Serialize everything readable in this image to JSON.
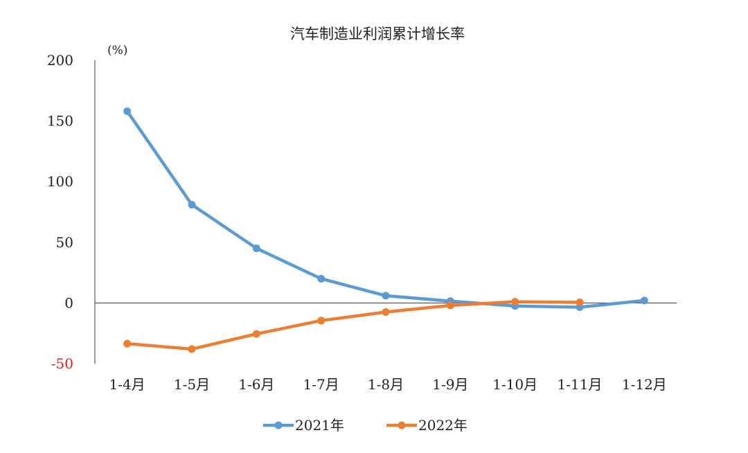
{
  "chart_data": {
    "type": "line",
    "title": "汽车制造业利润累计增长率",
    "unit_label": "(%)",
    "categories": [
      "1-4月",
      "1-5月",
      "1-6月",
      "1-7月",
      "1-8月",
      "1-9月",
      "1-10月",
      "1-11月",
      "1-12月"
    ],
    "ylim": [
      -50,
      200
    ],
    "yticks": [
      "200",
      "150",
      "100",
      "50",
      "0",
      "-50"
    ],
    "negative_tick_color": "#e8201f",
    "grid": false,
    "legend_position": "bottom",
    "series": [
      {
        "name": "2021年",
        "color": "#5b9bd5",
        "values": [
          158,
          81,
          45,
          20,
          6,
          1.5,
          -2.5,
          -3.5,
          2
        ]
      },
      {
        "name": "2022年",
        "color": "#ed7d31",
        "values": [
          -33.5,
          -38,
          -25.5,
          -14.5,
          -7.5,
          -2,
          1,
          0.5,
          null
        ]
      }
    ]
  }
}
